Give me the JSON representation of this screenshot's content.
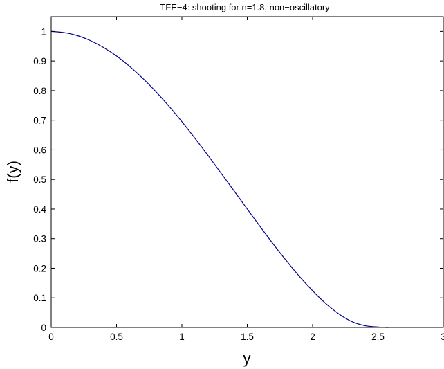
{
  "chart_data": {
    "type": "line",
    "title": "TFE−4: shooting for n=1.8, non−oscillatory",
    "xlabel": "y",
    "ylabel": "f(y)",
    "xlim": [
      0,
      3
    ],
    "ylim": [
      0,
      1.05
    ],
    "xticks": [
      0,
      0.5,
      1,
      1.5,
      2,
      2.5,
      3
    ],
    "xtick_labels": [
      "0",
      "0.5",
      "1",
      "1.5",
      "2",
      "2.5",
      "3"
    ],
    "yticks": [
      0,
      0.1,
      0.2,
      0.3,
      0.4,
      0.5,
      0.6,
      0.7,
      0.8,
      0.9,
      1
    ],
    "ytick_labels": [
      "0",
      "0.1",
      "0.2",
      "0.3",
      "0.4",
      "0.5",
      "0.6",
      "0.7",
      "0.8",
      "0.9",
      "1"
    ],
    "grid": false,
    "series": [
      {
        "color": "#00008b",
        "x": [
          0,
          0.1,
          0.2,
          0.3,
          0.4,
          0.5,
          0.6,
          0.7,
          0.8,
          0.9,
          1.0,
          1.1,
          1.2,
          1.3,
          1.4,
          1.5,
          1.6,
          1.7,
          1.8,
          1.9,
          2.0,
          2.1,
          2.2,
          2.3,
          2.4,
          2.5,
          2.55,
          2.58
        ],
        "y": [
          1.0,
          0.996,
          0.986,
          0.969,
          0.946,
          0.917,
          0.882,
          0.842,
          0.797,
          0.748,
          0.695,
          0.639,
          0.581,
          0.521,
          0.461,
          0.4,
          0.34,
          0.281,
          0.225,
          0.172,
          0.124,
          0.081,
          0.046,
          0.02,
          0.006,
          0.0015,
          0.0003,
          0.0
        ]
      }
    ]
  }
}
